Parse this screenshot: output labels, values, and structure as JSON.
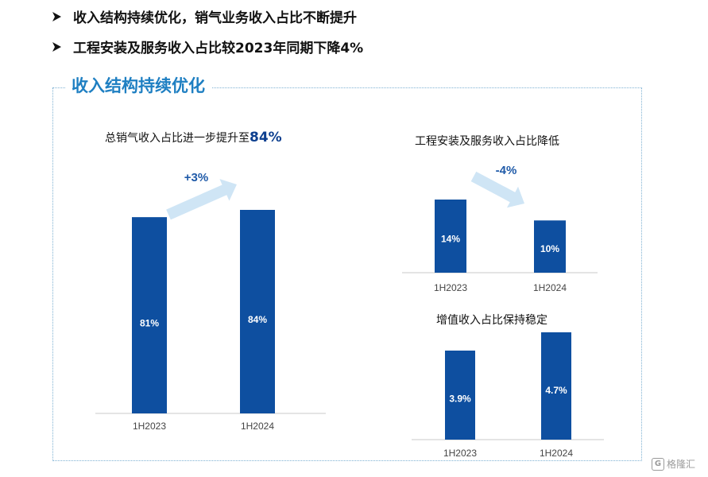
{
  "bullets": [
    "收入结构持续优化，销气业务收入占比不断提升",
    "工程安装及服务收入占比较2023年同期下降4%"
  ],
  "section_title": "收入结构持续优化",
  "watermark": {
    "logo": "G",
    "text": "格隆汇"
  },
  "colors": {
    "bar": "#0e4fa0",
    "arrow": "#cfe5f5",
    "section_title": "#1e7fc2",
    "delta": "#1f5aa8"
  },
  "chart_data": [
    {
      "type": "bar",
      "title": "总销气收入占比进一步提升至",
      "title_highlight": "84%",
      "categories": [
        "1H2023",
        "1H2024"
      ],
      "values": [
        81,
        84
      ],
      "value_labels": [
        "81%",
        "84%"
      ],
      "change_label": "+3%",
      "ylim": [
        0,
        84
      ]
    },
    {
      "type": "bar",
      "title": "工程安装及服务收入占比降低",
      "categories": [
        "1H2023",
        "1H2024"
      ],
      "values": [
        14,
        10
      ],
      "value_labels": [
        "14%",
        "10%"
      ],
      "change_label": "-4%",
      "ylim": [
        0,
        14
      ]
    },
    {
      "type": "bar",
      "title": "增值收入占比保持稳定",
      "categories": [
        "1H2023",
        "1H2024"
      ],
      "values": [
        3.9,
        4.7
      ],
      "value_labels": [
        "3.9%",
        "4.7%"
      ],
      "ylim": [
        0,
        4.7
      ]
    }
  ]
}
